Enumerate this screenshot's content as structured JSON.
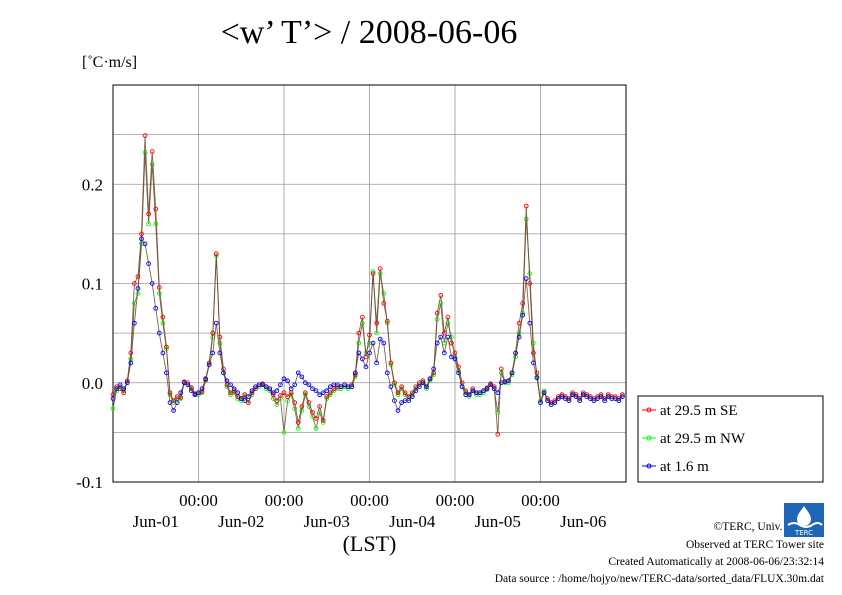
{
  "page": {
    "title": "<w’ T’> / 2008-06-06",
    "units": "[˚C·m/s]",
    "xlabel": "(LST)",
    "credits": {
      "copyright": "©TERC, Univ. Tsukuba",
      "observed": "Observed at TERC Tower site",
      "created": "Created Automatically at 2008-06-06/23:32:14",
      "source": "Data source : /home/hojyo/new/TERC-data/sorted_data/FLUX.30m.dat"
    },
    "logo_text": "TERC",
    "colors": {
      "se": "#ff0000",
      "nw": "#00ff00",
      "low": "#0000ff",
      "grid": "#999999"
    }
  },
  "chart_data": {
    "type": "line",
    "title": "<w’ T’> / 2008-06-06",
    "ylabel": "[˚C·m/s]",
    "xlabel": "(LST)",
    "ylim": [
      -0.1,
      0.3
    ],
    "xlim": [
      0,
      144
    ],
    "y_ticks": [
      -0.1,
      0.0,
      0.1,
      0.2
    ],
    "y_tick_labels": [
      "-0.1",
      "0.0",
      "0.1",
      "0.2"
    ],
    "x_ticks": [
      24,
      48,
      72,
      96,
      120
    ],
    "x_tick_labels": [
      "00:00",
      "00:00",
      "00:00",
      "00:00",
      "00:00"
    ],
    "day_labels": [
      {
        "x": 12,
        "label": "Jun-01"
      },
      {
        "x": 36,
        "label": "Jun-02"
      },
      {
        "x": 60,
        "label": "Jun-03"
      },
      {
        "x": 84,
        "label": "Jun-04"
      },
      {
        "x": 108,
        "label": "Jun-05"
      },
      {
        "x": 132,
        "label": "Jun-06"
      }
    ],
    "grid": true,
    "legend_position": "right",
    "series": [
      {
        "name": "at 29.5 m SE",
        "color": "#ff0000",
        "x": [
          0,
          1,
          2,
          3,
          4,
          5,
          6,
          7,
          8,
          9,
          10,
          11,
          12,
          13,
          14,
          15,
          16,
          17,
          18,
          19,
          20,
          21,
          22,
          23,
          24,
          25,
          26,
          27,
          28,
          29,
          30,
          31,
          32,
          33,
          34,
          35,
          36,
          37,
          38,
          39,
          40,
          41,
          42,
          43,
          44,
          45,
          46,
          47,
          48,
          49,
          50,
          51,
          52,
          53,
          54,
          55,
          56,
          57,
          58,
          59,
          60,
          61,
          62,
          63,
          64,
          65,
          66,
          67,
          68,
          69,
          70,
          71,
          72,
          73,
          74,
          75,
          76,
          77,
          78,
          79,
          80,
          81,
          82,
          83,
          84,
          85,
          86,
          87,
          88,
          89,
          90,
          91,
          92,
          93,
          94,
          95,
          96,
          97,
          98,
          99,
          100,
          101,
          102,
          103,
          104,
          105,
          106,
          107,
          108,
          109,
          110,
          111,
          112,
          113,
          114,
          115,
          116,
          117,
          118,
          119,
          120,
          121,
          122,
          123,
          124,
          125,
          126,
          127,
          128,
          129,
          130,
          131,
          132,
          133,
          134,
          135,
          136,
          137,
          138,
          139,
          140,
          141,
          142,
          143
        ],
        "y": [
          -0.012,
          -0.004,
          -0.006,
          -0.01,
          0.002,
          0.03,
          0.1,
          0.107,
          0.15,
          0.249,
          0.17,
          0.233,
          0.175,
          0.096,
          0.066,
          0.036,
          -0.01,
          -0.018,
          -0.014,
          -0.015,
          0.001,
          0.0,
          -0.005,
          -0.011,
          -0.01,
          -0.009,
          0.003,
          0.02,
          0.05,
          0.13,
          0.046,
          0.014,
          -0.002,
          -0.01,
          -0.008,
          -0.014,
          -0.016,
          -0.012,
          -0.02,
          -0.01,
          -0.006,
          -0.002,
          -0.001,
          -0.004,
          -0.006,
          -0.012,
          -0.018,
          -0.013,
          -0.01,
          -0.014,
          -0.01,
          -0.02,
          -0.04,
          -0.024,
          -0.01,
          -0.02,
          -0.03,
          -0.036,
          -0.024,
          -0.038,
          -0.014,
          -0.01,
          -0.006,
          -0.004,
          -0.004,
          -0.002,
          -0.004,
          -0.002,
          0.008,
          0.05,
          0.066,
          0.026,
          0.048,
          0.11,
          0.06,
          0.115,
          0.08,
          0.062,
          0.02,
          0.0,
          -0.01,
          -0.004,
          -0.01,
          -0.014,
          -0.01,
          -0.004,
          0.0,
          0.002,
          -0.004,
          0.004,
          0.01,
          0.07,
          0.088,
          0.05,
          0.066,
          0.04,
          0.03,
          0.016,
          0.0,
          -0.008,
          -0.012,
          -0.006,
          -0.01,
          -0.01,
          -0.008,
          -0.005,
          -0.001,
          -0.004,
          -0.052,
          0.014,
          0.001,
          0.002,
          0.01,
          0.03,
          0.06,
          0.08,
          0.178,
          0.1,
          0.03,
          0.01,
          -0.02,
          -0.01,
          -0.016,
          -0.02,
          -0.018,
          -0.014,
          -0.012,
          -0.014,
          -0.016,
          -0.01,
          -0.012,
          -0.016,
          -0.01,
          -0.012,
          -0.014,
          -0.016,
          -0.014,
          -0.012,
          -0.016,
          -0.012,
          -0.014,
          -0.014,
          -0.016,
          -0.012
        ]
      },
      {
        "name": "at 29.5 m NW",
        "color": "#00ff00",
        "x": [
          0,
          1,
          2,
          3,
          4,
          5,
          6,
          7,
          8,
          9,
          10,
          11,
          12,
          13,
          14,
          15,
          16,
          17,
          18,
          19,
          20,
          21,
          22,
          23,
          24,
          25,
          26,
          27,
          28,
          29,
          30,
          31,
          32,
          33,
          34,
          35,
          36,
          37,
          38,
          39,
          40,
          41,
          42,
          43,
          44,
          45,
          46,
          47,
          48,
          49,
          50,
          51,
          52,
          53,
          54,
          55,
          56,
          57,
          58,
          59,
          60,
          61,
          62,
          63,
          64,
          65,
          66,
          67,
          68,
          69,
          70,
          71,
          72,
          73,
          74,
          75,
          76,
          77,
          78,
          79,
          80,
          81,
          82,
          83,
          84,
          85,
          86,
          87,
          88,
          89,
          90,
          91,
          92,
          93,
          94,
          95,
          96,
          97,
          98,
          99,
          100,
          101,
          102,
          103,
          104,
          105,
          106,
          107,
          108,
          109,
          110,
          111,
          112,
          113,
          114,
          115,
          116,
          117,
          118,
          119,
          120,
          121,
          122,
          123,
          124,
          125,
          126,
          127,
          128,
          129,
          130,
          131,
          132,
          133,
          134,
          135,
          136,
          137,
          138,
          139,
          140,
          141,
          142,
          143
        ],
        "y": [
          -0.026,
          -0.008,
          -0.004,
          -0.008,
          0.0,
          0.024,
          0.08,
          0.09,
          0.14,
          0.232,
          0.16,
          0.22,
          0.16,
          0.09,
          0.06,
          0.034,
          -0.012,
          -0.02,
          -0.016,
          -0.016,
          0.0,
          -0.002,
          -0.006,
          -0.012,
          -0.012,
          -0.01,
          0.002,
          0.018,
          0.046,
          0.128,
          0.04,
          0.01,
          -0.004,
          -0.012,
          -0.01,
          -0.016,
          -0.018,
          -0.014,
          -0.02,
          -0.012,
          -0.006,
          -0.004,
          -0.002,
          -0.006,
          -0.008,
          -0.016,
          -0.022,
          -0.016,
          -0.05,
          -0.018,
          -0.012,
          -0.026,
          -0.046,
          -0.028,
          -0.012,
          -0.024,
          -0.034,
          -0.046,
          -0.03,
          -0.04,
          -0.016,
          -0.012,
          -0.008,
          -0.006,
          -0.006,
          -0.004,
          -0.006,
          -0.004,
          0.006,
          0.04,
          0.06,
          0.03,
          0.04,
          0.112,
          0.05,
          0.11,
          0.09,
          0.06,
          0.018,
          -0.002,
          -0.012,
          -0.006,
          -0.012,
          -0.016,
          -0.012,
          -0.006,
          -0.002,
          0.0,
          -0.006,
          0.002,
          0.008,
          0.064,
          0.08,
          0.04,
          0.06,
          0.046,
          0.026,
          0.012,
          -0.004,
          -0.01,
          -0.014,
          -0.008,
          -0.012,
          -0.012,
          -0.01,
          -0.007,
          -0.002,
          -0.006,
          -0.03,
          0.01,
          0.0,
          0.0,
          0.008,
          0.026,
          0.05,
          0.07,
          0.165,
          0.11,
          0.04,
          0.006,
          -0.018,
          -0.008,
          -0.018,
          -0.022,
          -0.02,
          -0.016,
          -0.014,
          -0.016,
          -0.018,
          -0.012,
          -0.014,
          -0.018,
          -0.012,
          -0.014,
          -0.016,
          -0.018,
          -0.016,
          -0.014,
          -0.018,
          -0.014,
          -0.016,
          -0.016,
          -0.018,
          -0.014
        ]
      },
      {
        "name": "at 1.6 m",
        "color": "#0000ff",
        "x": [
          0,
          1,
          2,
          3,
          4,
          5,
          6,
          7,
          8,
          9,
          10,
          11,
          12,
          13,
          14,
          15,
          16,
          17,
          18,
          19,
          20,
          21,
          22,
          23,
          24,
          25,
          26,
          27,
          28,
          29,
          30,
          31,
          32,
          33,
          34,
          35,
          36,
          37,
          38,
          39,
          40,
          41,
          42,
          43,
          44,
          45,
          46,
          47,
          48,
          49,
          50,
          51,
          52,
          53,
          54,
          55,
          56,
          57,
          58,
          59,
          60,
          61,
          62,
          63,
          64,
          65,
          66,
          67,
          68,
          69,
          70,
          71,
          72,
          73,
          74,
          75,
          76,
          77,
          78,
          79,
          80,
          81,
          82,
          83,
          84,
          85,
          86,
          87,
          88,
          89,
          90,
          91,
          92,
          93,
          94,
          95,
          96,
          97,
          98,
          99,
          100,
          101,
          102,
          103,
          104,
          105,
          106,
          107,
          108,
          109,
          110,
          111,
          112,
          113,
          114,
          115,
          116,
          117,
          118,
          119,
          120,
          121,
          122,
          123,
          124,
          125,
          126,
          127,
          128,
          129,
          130,
          131,
          132,
          133,
          134,
          135,
          136,
          137,
          138,
          139,
          140,
          141,
          142,
          143
        ],
        "y": [
          -0.016,
          -0.006,
          -0.002,
          -0.006,
          0.0,
          0.02,
          0.06,
          0.095,
          0.145,
          0.14,
          0.12,
          0.1,
          0.075,
          0.05,
          0.03,
          0.01,
          -0.02,
          -0.028,
          -0.02,
          -0.01,
          0.0,
          -0.002,
          -0.008,
          -0.012,
          -0.01,
          -0.006,
          0.004,
          0.018,
          0.03,
          0.06,
          0.03,
          0.01,
          0.002,
          -0.002,
          -0.006,
          -0.01,
          -0.016,
          -0.018,
          -0.014,
          -0.008,
          -0.004,
          -0.002,
          -0.002,
          -0.004,
          -0.006,
          -0.01,
          -0.008,
          -0.002,
          0.004,
          0.002,
          -0.006,
          -0.002,
          0.01,
          0.006,
          0.0,
          -0.002,
          -0.006,
          -0.008,
          -0.012,
          -0.01,
          -0.008,
          -0.004,
          -0.002,
          -0.002,
          -0.004,
          -0.002,
          -0.004,
          -0.004,
          0.01,
          0.03,
          0.024,
          0.016,
          0.03,
          0.04,
          0.02,
          0.044,
          0.04,
          0.01,
          -0.004,
          -0.018,
          -0.028,
          -0.02,
          -0.018,
          -0.018,
          -0.014,
          -0.008,
          -0.004,
          0.0,
          -0.004,
          0.004,
          0.014,
          0.04,
          0.046,
          0.03,
          0.046,
          0.026,
          0.024,
          0.01,
          -0.004,
          -0.012,
          -0.012,
          -0.008,
          -0.01,
          -0.01,
          -0.008,
          -0.006,
          -0.002,
          -0.006,
          -0.01,
          0.0,
          0.001,
          0.002,
          0.01,
          0.03,
          0.046,
          0.068,
          0.105,
          0.06,
          0.02,
          0.005,
          -0.02,
          -0.01,
          -0.018,
          -0.022,
          -0.02,
          -0.016,
          -0.014,
          -0.016,
          -0.018,
          -0.012,
          -0.014,
          -0.018,
          -0.012,
          -0.014,
          -0.016,
          -0.018,
          -0.016,
          -0.014,
          -0.018,
          -0.014,
          -0.016,
          -0.016,
          -0.018,
          -0.014
        ]
      }
    ]
  }
}
